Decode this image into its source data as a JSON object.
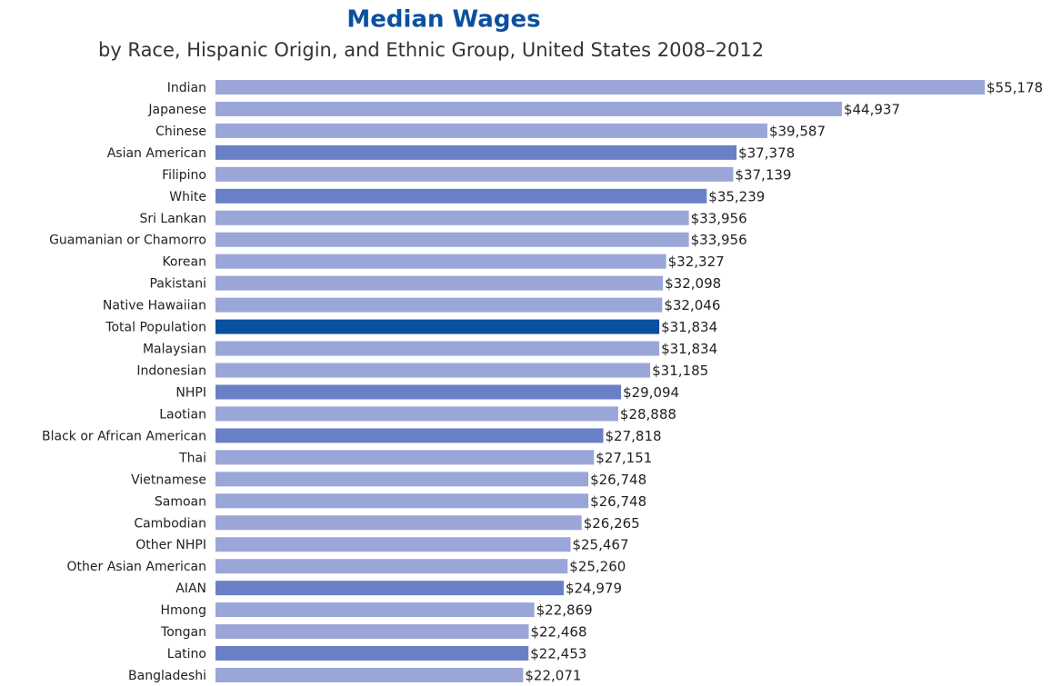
{
  "chart_data": {
    "type": "bar",
    "orientation": "horizontal",
    "title": "Median Wages",
    "subtitle": "by Race, Hispanic Origin, and Ethnic Group, United States 2008–2012",
    "categories": [
      "Indian",
      "Japanese",
      "Chinese",
      "Asian American",
      "Filipino",
      "White",
      "Sri Lankan",
      "Guamanian or Chamorro",
      "Korean",
      "Pakistani",
      "Native Hawaiian",
      "Total Population",
      "Malaysian",
      "Indonesian",
      "NHPI",
      "Laotian",
      "Black or African American",
      "Thai",
      "Vietnamese",
      "Samoan",
      "Cambodian",
      "Other NHPI",
      "Other Asian American",
      "AIAN",
      "Hmong",
      "Tongan",
      "Latino",
      "Bangladeshi"
    ],
    "values": [
      55178,
      44937,
      39587,
      37378,
      37139,
      35239,
      33956,
      33956,
      32327,
      32098,
      32046,
      31834,
      31834,
      31185,
      29094,
      28888,
      27818,
      27151,
      26748,
      26748,
      26265,
      25467,
      25260,
      24979,
      22869,
      22468,
      22453,
      22071
    ],
    "value_labels": [
      "$55,178",
      "$44,937",
      "$39,587",
      "$37,378",
      "$37,139",
      "$35,239",
      "$33,956",
      "$33,956",
      "$32,327",
      "$32,098",
      "$32,046",
      "$31,834",
      "$31,834",
      "$31,185",
      "$29,094",
      "$28,888",
      "$27,818",
      "$27,151",
      "$26,748",
      "$26,748",
      "$26,265",
      "$25,467",
      "$25,260",
      "$24,979",
      "$22,869",
      "$22,468",
      "$22,453",
      "$22,071"
    ],
    "colors": [
      "#9ba6d8",
      "#9ba6d8",
      "#9ba6d8",
      "#6a80c6",
      "#9ba6d8",
      "#6a80c6",
      "#9ba6d8",
      "#9ba6d8",
      "#9ba6d8",
      "#9ba6d8",
      "#9ba6d8",
      "#0b50a0",
      "#9ba6d8",
      "#9ba6d8",
      "#6a80c6",
      "#9ba6d8",
      "#6a80c6",
      "#9ba6d8",
      "#9ba6d8",
      "#9ba6d8",
      "#9ba6d8",
      "#9ba6d8",
      "#9ba6d8",
      "#6a80c6",
      "#9ba6d8",
      "#9ba6d8",
      "#6a80c6",
      "#9ba6d8"
    ]
  }
}
